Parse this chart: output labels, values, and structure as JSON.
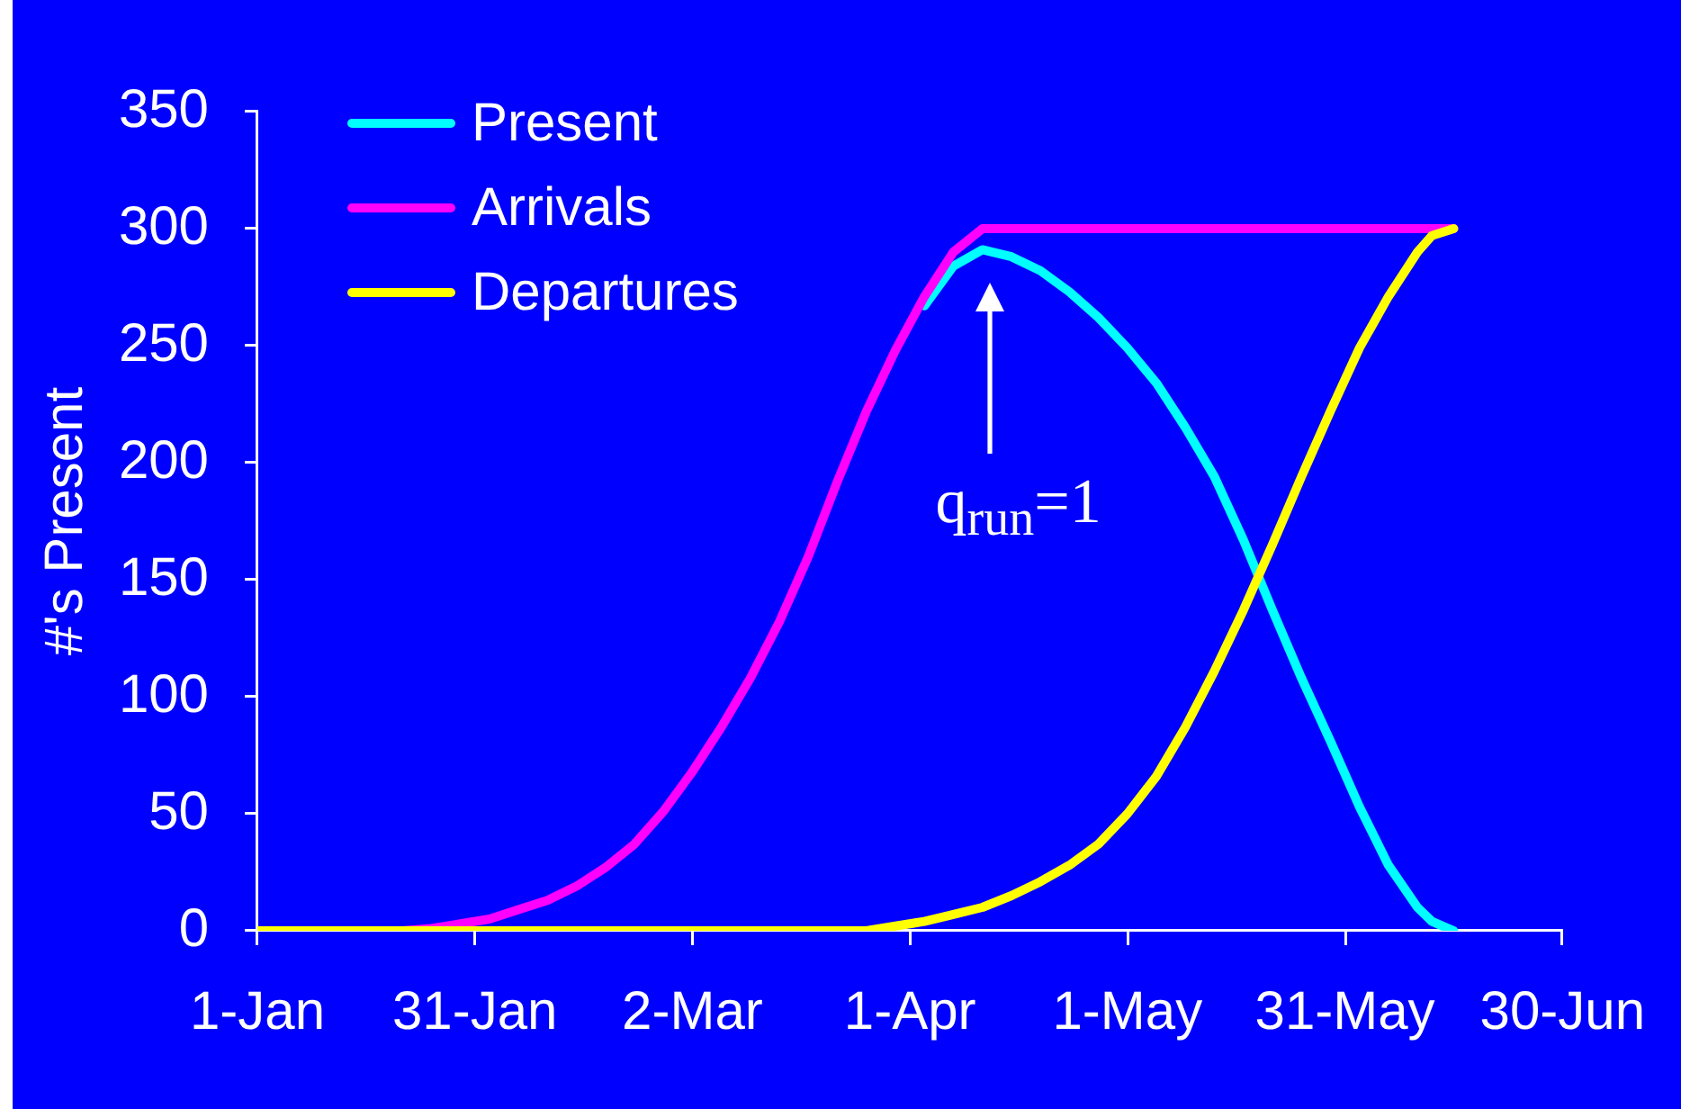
{
  "chart_data": {
    "type": "line",
    "ylabel": "#'s Present",
    "x": [
      "--01-01",
      "--01-21",
      "--01-25",
      "--01-29",
      "--02-02",
      "--02-06",
      "--02-10",
      "--02-14",
      "--02-18",
      "--02-22",
      "--02-26",
      "--03-02",
      "--03-06",
      "--03-10",
      "--03-14",
      "--03-18",
      "--03-22",
      "--03-26",
      "--03-30",
      "--04-03",
      "--04-07",
      "--04-11",
      "--04-15",
      "--04-19",
      "--04-23",
      "--04-27",
      "--05-01",
      "--05-05",
      "--05-09",
      "--05-13",
      "--05-17",
      "--05-21",
      "--05-25",
      "--05-29",
      "--06-02",
      "--06-06",
      "--06-10",
      "--06-12",
      "--06-15"
    ],
    "series": [
      {
        "name": "Present",
        "color": "#00ffff",
        "values": [
          null,
          null,
          null,
          null,
          null,
          null,
          null,
          null,
          null,
          null,
          null,
          null,
          null,
          null,
          null,
          null,
          null,
          null,
          null,
          267,
          284,
          291,
          288,
          282,
          273,
          262,
          249,
          234,
          215,
          194,
          167,
          137,
          108,
          81,
          53,
          28,
          10,
          4,
          0
        ]
      },
      {
        "name": "Arrivals",
        "color": "#ff00ff",
        "values": [
          0,
          0,
          1,
          3,
          5,
          9,
          13,
          19,
          27,
          37,
          51,
          68,
          87,
          108,
          132,
          160,
          192,
          222,
          248,
          271,
          290,
          300,
          300,
          300,
          300,
          300,
          300,
          300,
          300,
          300,
          300,
          300,
          300,
          300,
          300,
          300,
          300,
          300,
          300
        ]
      },
      {
        "name": "Departures",
        "color": "#ffff00",
        "values": [
          0,
          0,
          0,
          0,
          0,
          0,
          0,
          0,
          0,
          0,
          0,
          0,
          0,
          0,
          0,
          0,
          0,
          0,
          2,
          4,
          7,
          10,
          15,
          21,
          28,
          37,
          50,
          66,
          87,
          111,
          137,
          165,
          194,
          222,
          249,
          271,
          290,
          297,
          300
        ]
      }
    ],
    "xlim": [
      "--01-01",
      "--06-30"
    ],
    "xticks": [
      {
        "value": "--01-01",
        "label": "1-Jan"
      },
      {
        "value": "--01-31",
        "label": "31-Jan"
      },
      {
        "value": "--03-02",
        "label": "2-Mar"
      },
      {
        "value": "--04-01",
        "label": "1-Apr"
      },
      {
        "value": "--05-01",
        "label": "1-May"
      },
      {
        "value": "--05-31",
        "label": "31-May"
      },
      {
        "value": "--06-30",
        "label": "30-Jun"
      }
    ],
    "ylim": [
      0,
      350
    ],
    "yticks": [
      0,
      50,
      100,
      150,
      200,
      250,
      300,
      350
    ],
    "legend": "top left",
    "marker": "none",
    "annotations": [
      "q$_{run}$=1"
    ]
  }
}
